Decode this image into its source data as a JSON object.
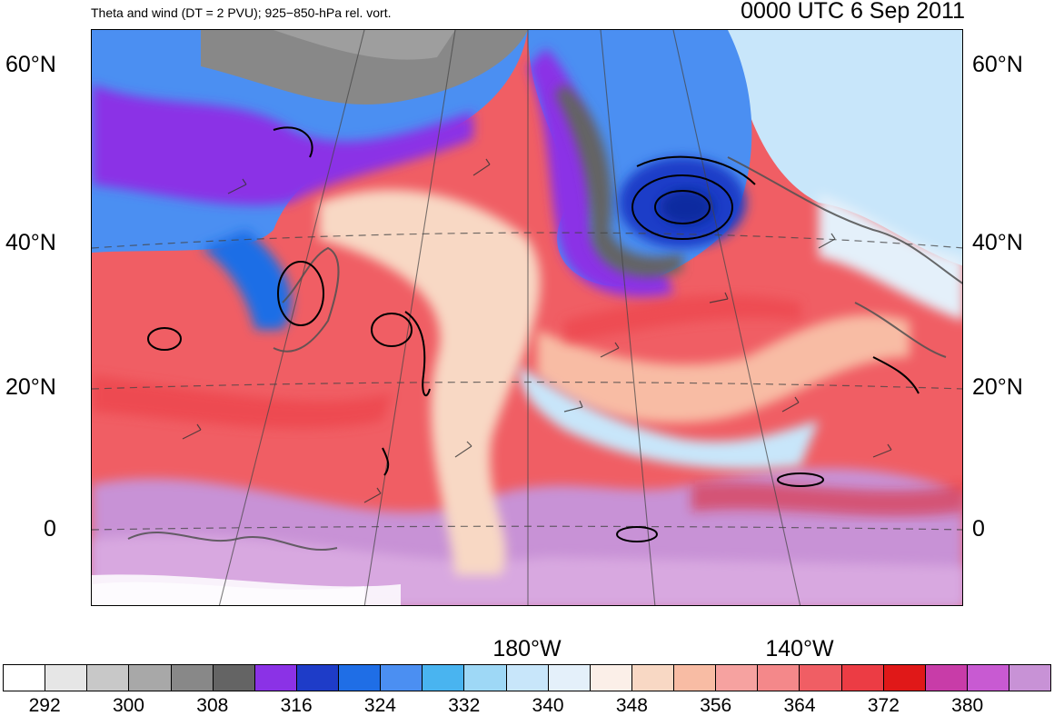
{
  "header": {
    "title": "Theta and wind (DT = 2 PVU); 925−850-hPa rel. vort.",
    "timestamp": "0000 UTC 6 Sep 2011"
  },
  "map": {
    "lat_labels": [
      "60°N",
      "40°N",
      "20°N",
      "0"
    ],
    "lon_labels": [
      "180°W",
      "140°W"
    ]
  },
  "colorbar": {
    "colors": [
      "#ffffff",
      "#e6e6e6",
      "#c8c8c8",
      "#a8a8a8",
      "#888888",
      "#646464",
      "#8b32e6",
      "#1e3cc8",
      "#1f6ee6",
      "#4b8ff2",
      "#49b4f0",
      "#9ed8f6",
      "#c8e6fa",
      "#e4f0fa",
      "#fbefe8",
      "#f8d8c4",
      "#f8bca4",
      "#f6a2a0",
      "#f4888a",
      "#f05e64",
      "#ec3c44",
      "#e01818",
      "#c83ca8",
      "#c85ad2",
      "#c892d6"
    ],
    "tick_labels": [
      "292",
      "300",
      "308",
      "316",
      "324",
      "332",
      "340",
      "348",
      "356",
      "364",
      "372",
      "380"
    ]
  }
}
